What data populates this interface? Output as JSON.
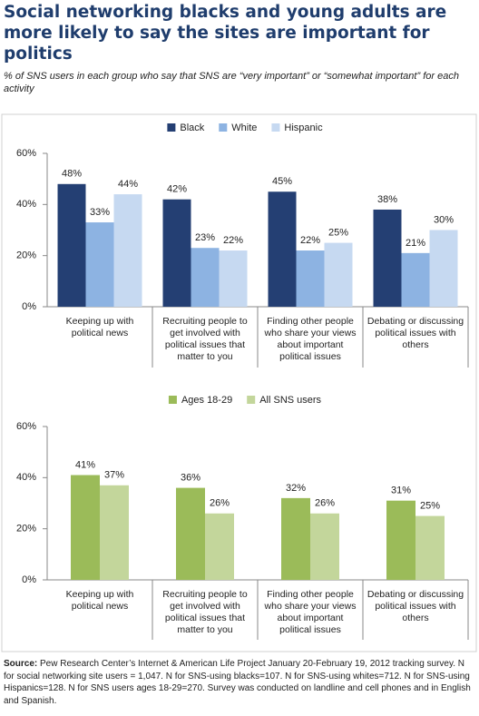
{
  "title": "Social networking blacks and young adults are more likely to say the sites are important for politics",
  "subtitle": "% of SNS users in each group who say that SNS are “very important” or “somewhat important” for each activity",
  "footnote": {
    "label": "Source:",
    "text": "Pew Research Center’s Internet & American Life Project January 20-February 19, 2012 tracking survey. N for social networking site users = 1,047. N for SNS-using blacks=107. N for SNS-using whites=712. N for SNS-using Hispanics=128. N for SNS users ages 18-29=270. Survey was conducted on landline and cell phones and in English and Spanish."
  },
  "chart_data": [
    {
      "type": "bar",
      "categories": [
        "Keeping up with political news",
        "Recruiting people to get involved with political issues that matter to you",
        "Finding other people who share your views about important political issues",
        "Debating or discussing political issues with others"
      ],
      "series": [
        {
          "name": "Black",
          "color": "#243f73",
          "values": [
            48,
            42,
            45,
            38
          ],
          "value_labels": [
            "48%",
            "42%",
            "45%",
            "38%"
          ]
        },
        {
          "name": "White",
          "color": "#8db3e2",
          "values": [
            33,
            23,
            22,
            21
          ],
          "value_labels": [
            "33%",
            "23%",
            "22%",
            "21%"
          ]
        },
        {
          "name": "Hispanic",
          "color": "#c6d9f1",
          "values": [
            44,
            22,
            25,
            30
          ],
          "value_labels": [
            "44%",
            "22%",
            "25%",
            "30%"
          ]
        }
      ],
      "ylim": [
        0,
        60
      ],
      "yticks": [
        {
          "value": 0,
          "label": "0%"
        },
        {
          "value": 20,
          "label": "20%"
        },
        {
          "value": 40,
          "label": "40%"
        },
        {
          "value": 60,
          "label": "60%"
        }
      ]
    },
    {
      "type": "bar",
      "categories": [
        "Keeping up with political news",
        "Recruiting people to get involved with political issues that matter to you",
        "Finding other people who share your views about important political issues",
        "Debating or discussing political issues with others"
      ],
      "series": [
        {
          "name": "Ages 18-29",
          "color": "#9bbb59",
          "values": [
            41,
            36,
            32,
            31
          ],
          "value_labels": [
            "41%",
            "36%",
            "32%",
            "31%"
          ]
        },
        {
          "name": "All SNS users",
          "color": "#c3d69b",
          "values": [
            37,
            26,
            26,
            25
          ],
          "value_labels": [
            "37%",
            "26%",
            "26%",
            "25%"
          ]
        }
      ],
      "ylim": [
        0,
        60
      ],
      "yticks": [
        {
          "value": 0,
          "label": "0%"
        },
        {
          "value": 20,
          "label": "20%"
        },
        {
          "value": 40,
          "label": "40%"
        },
        {
          "value": 60,
          "label": "60%"
        }
      ]
    }
  ]
}
